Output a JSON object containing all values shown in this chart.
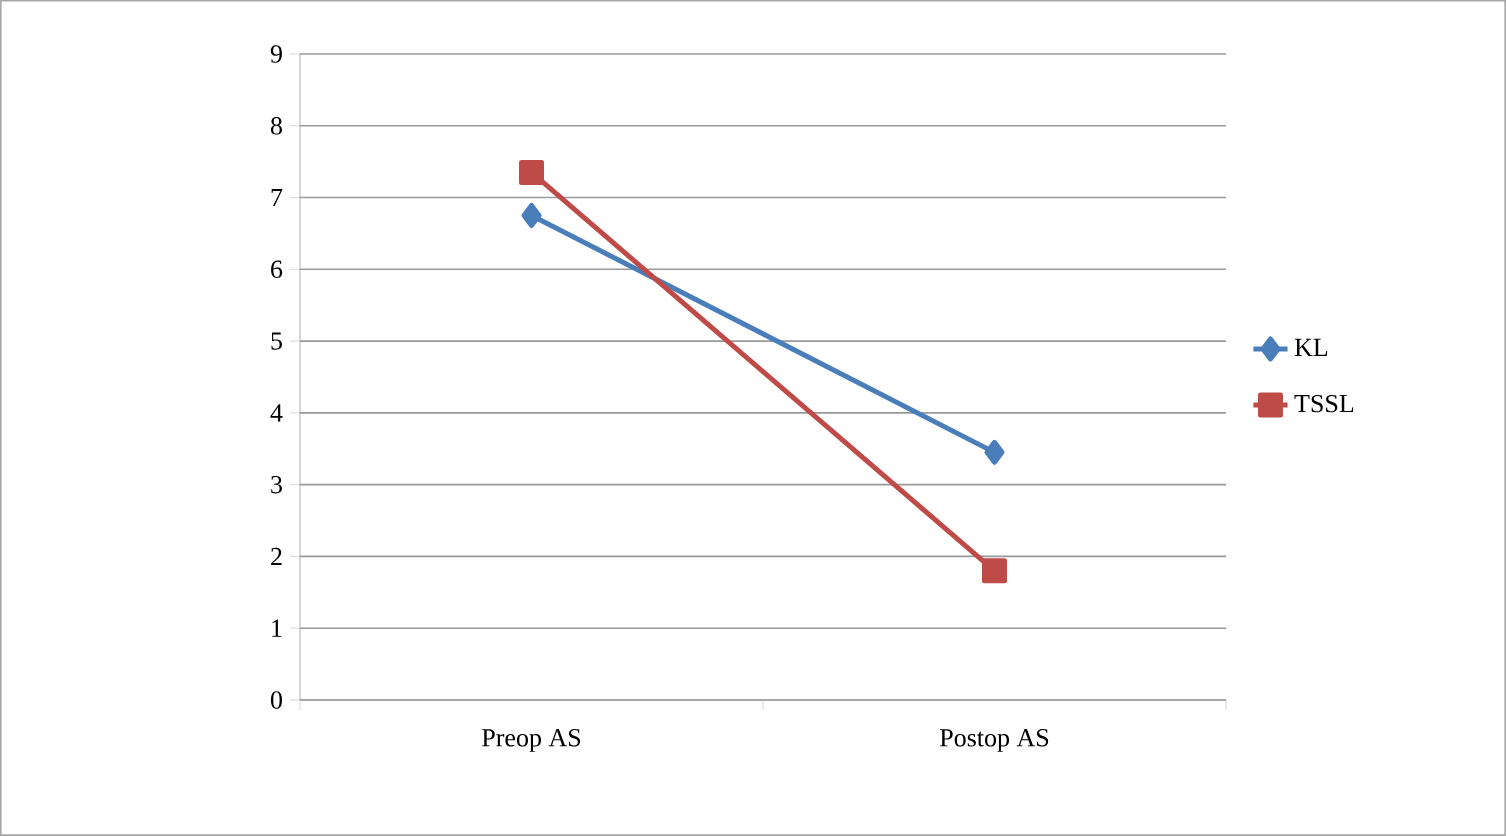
{
  "chart_data": {
    "type": "line",
    "categories": [
      "Preop AS",
      "Postop AS"
    ],
    "series": [
      {
        "name": "KL",
        "color": "#4a7ebb",
        "values": [
          6.75,
          3.45
        ],
        "marker": "diamond"
      },
      {
        "name": "TSSL",
        "color": "#be4b48",
        "values": [
          7.35,
          1.8
        ],
        "marker": "square"
      }
    ],
    "ylim": [
      0,
      9
    ],
    "yticks": [
      0,
      1,
      2,
      3,
      4,
      5,
      6,
      7,
      8,
      9
    ],
    "grid": "y",
    "legend": "right"
  }
}
